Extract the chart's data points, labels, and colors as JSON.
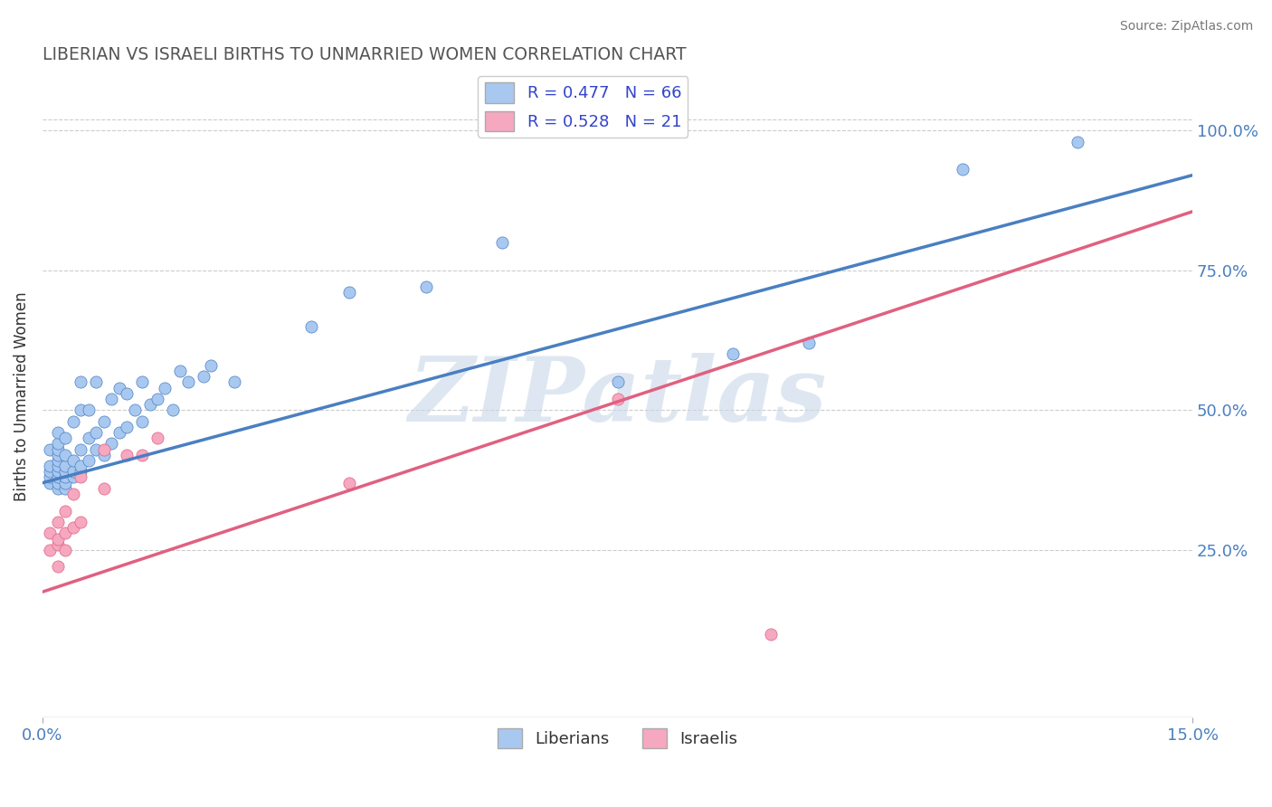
{
  "title": "LIBERIAN VS ISRAELI BIRTHS TO UNMARRIED WOMEN CORRELATION CHART",
  "source": "Source: ZipAtlas.com",
  "ylabel": "Births to Unmarried Women",
  "y_tick_labels": [
    "25.0%",
    "50.0%",
    "75.0%",
    "100.0%"
  ],
  "y_tick_values": [
    0.25,
    0.5,
    0.75,
    1.0
  ],
  "xlim": [
    0.0,
    0.15
  ],
  "ylim": [
    -0.05,
    1.1
  ],
  "liberian_R": 0.477,
  "liberian_N": 66,
  "israeli_R": 0.528,
  "israeli_N": 21,
  "liberian_color": "#a8c8f0",
  "israeli_color": "#f5a8c0",
  "liberian_line_color": "#4a7fc1",
  "israeli_line_color": "#e06080",
  "watermark": "ZIPatlas",
  "watermark_color": "#c8d8e8",
  "lib_trend_x0": 0.0,
  "lib_trend_y0": 0.37,
  "lib_trend_x1": 0.15,
  "lib_trend_y1": 0.92,
  "isr_trend_x0": 0.0,
  "isr_trend_y0": 0.175,
  "isr_trend_x1": 0.15,
  "isr_trend_y1": 0.855,
  "liberian_x": [
    0.001,
    0.001,
    0.001,
    0.001,
    0.001,
    0.002,
    0.002,
    0.002,
    0.002,
    0.002,
    0.002,
    0.002,
    0.002,
    0.002,
    0.002,
    0.003,
    0.003,
    0.003,
    0.003,
    0.003,
    0.003,
    0.003,
    0.004,
    0.004,
    0.004,
    0.004,
    0.005,
    0.005,
    0.005,
    0.005,
    0.005,
    0.006,
    0.006,
    0.006,
    0.007,
    0.007,
    0.007,
    0.008,
    0.008,
    0.009,
    0.009,
    0.01,
    0.01,
    0.011,
    0.011,
    0.012,
    0.013,
    0.013,
    0.014,
    0.015,
    0.016,
    0.017,
    0.018,
    0.019,
    0.021,
    0.022,
    0.025,
    0.035,
    0.04,
    0.05,
    0.06,
    0.075,
    0.09,
    0.1,
    0.12,
    0.135
  ],
  "liberian_y": [
    0.37,
    0.38,
    0.39,
    0.4,
    0.43,
    0.36,
    0.37,
    0.38,
    0.39,
    0.4,
    0.41,
    0.42,
    0.43,
    0.44,
    0.46,
    0.36,
    0.37,
    0.38,
    0.39,
    0.4,
    0.42,
    0.45,
    0.38,
    0.39,
    0.41,
    0.48,
    0.39,
    0.4,
    0.43,
    0.5,
    0.55,
    0.41,
    0.45,
    0.5,
    0.43,
    0.46,
    0.55,
    0.42,
    0.48,
    0.44,
    0.52,
    0.46,
    0.54,
    0.47,
    0.53,
    0.5,
    0.48,
    0.55,
    0.51,
    0.52,
    0.54,
    0.5,
    0.57,
    0.55,
    0.56,
    0.58,
    0.55,
    0.65,
    0.71,
    0.72,
    0.8,
    0.55,
    0.6,
    0.62,
    0.93,
    0.98
  ],
  "israeli_x": [
    0.001,
    0.001,
    0.002,
    0.002,
    0.002,
    0.002,
    0.003,
    0.003,
    0.003,
    0.004,
    0.004,
    0.005,
    0.005,
    0.008,
    0.008,
    0.011,
    0.013,
    0.015,
    0.04,
    0.075,
    0.095
  ],
  "israeli_y": [
    0.25,
    0.28,
    0.22,
    0.26,
    0.27,
    0.3,
    0.25,
    0.28,
    0.32,
    0.29,
    0.35,
    0.3,
    0.38,
    0.36,
    0.43,
    0.42,
    0.42,
    0.45,
    0.37,
    0.52,
    0.1
  ]
}
